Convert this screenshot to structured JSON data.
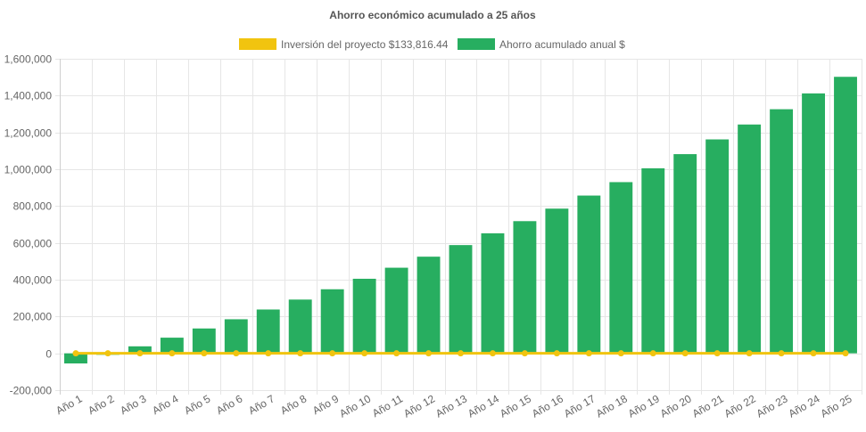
{
  "chart_data": {
    "type": "bar",
    "title": "Ahorro económico acumulado a 25 años",
    "categories": [
      "Año 1",
      "Año 2",
      "Año 3",
      "Año 4",
      "Año 5",
      "Año 6",
      "Año 7",
      "Año 8",
      "Año 9",
      "Año 10",
      "Año 11",
      "Año 12",
      "Año 13",
      "Año 14",
      "Año 15",
      "Año 16",
      "Año 17",
      "Año 18",
      "Año 19",
      "Año 20",
      "Año 21",
      "Año 22",
      "Año 23",
      "Año 24",
      "Año 25"
    ],
    "series": [
      {
        "name": "Inversión del proyecto $133,816.44",
        "type": "line",
        "color": "#f1c40f",
        "values": [
          0,
          0,
          0,
          0,
          0,
          0,
          0,
          0,
          0,
          0,
          0,
          0,
          0,
          0,
          0,
          0,
          0,
          0,
          0,
          0,
          0,
          0,
          0,
          0,
          0
        ]
      },
      {
        "name": "Ahorro acumulado anual $",
        "type": "bar",
        "color": "#27ae60",
        "values": [
          -55000,
          -8000,
          38000,
          85000,
          135000,
          185000,
          238000,
          292000,
          348000,
          405000,
          465000,
          525000,
          588000,
          652000,
          718000,
          786000,
          857000,
          930000,
          1005000,
          1082000,
          1162000,
          1243000,
          1326000,
          1412000,
          1502000
        ]
      }
    ],
    "y_ticks": [
      "1,600,000",
      "1,400,000",
      "1,200,000",
      "1,000,000",
      "800,000",
      "600,000",
      "400,000",
      "200,000",
      "0",
      "-200,000"
    ],
    "ylim": [
      -200000,
      1600000
    ],
    "grid": true,
    "legend_position": "top"
  }
}
